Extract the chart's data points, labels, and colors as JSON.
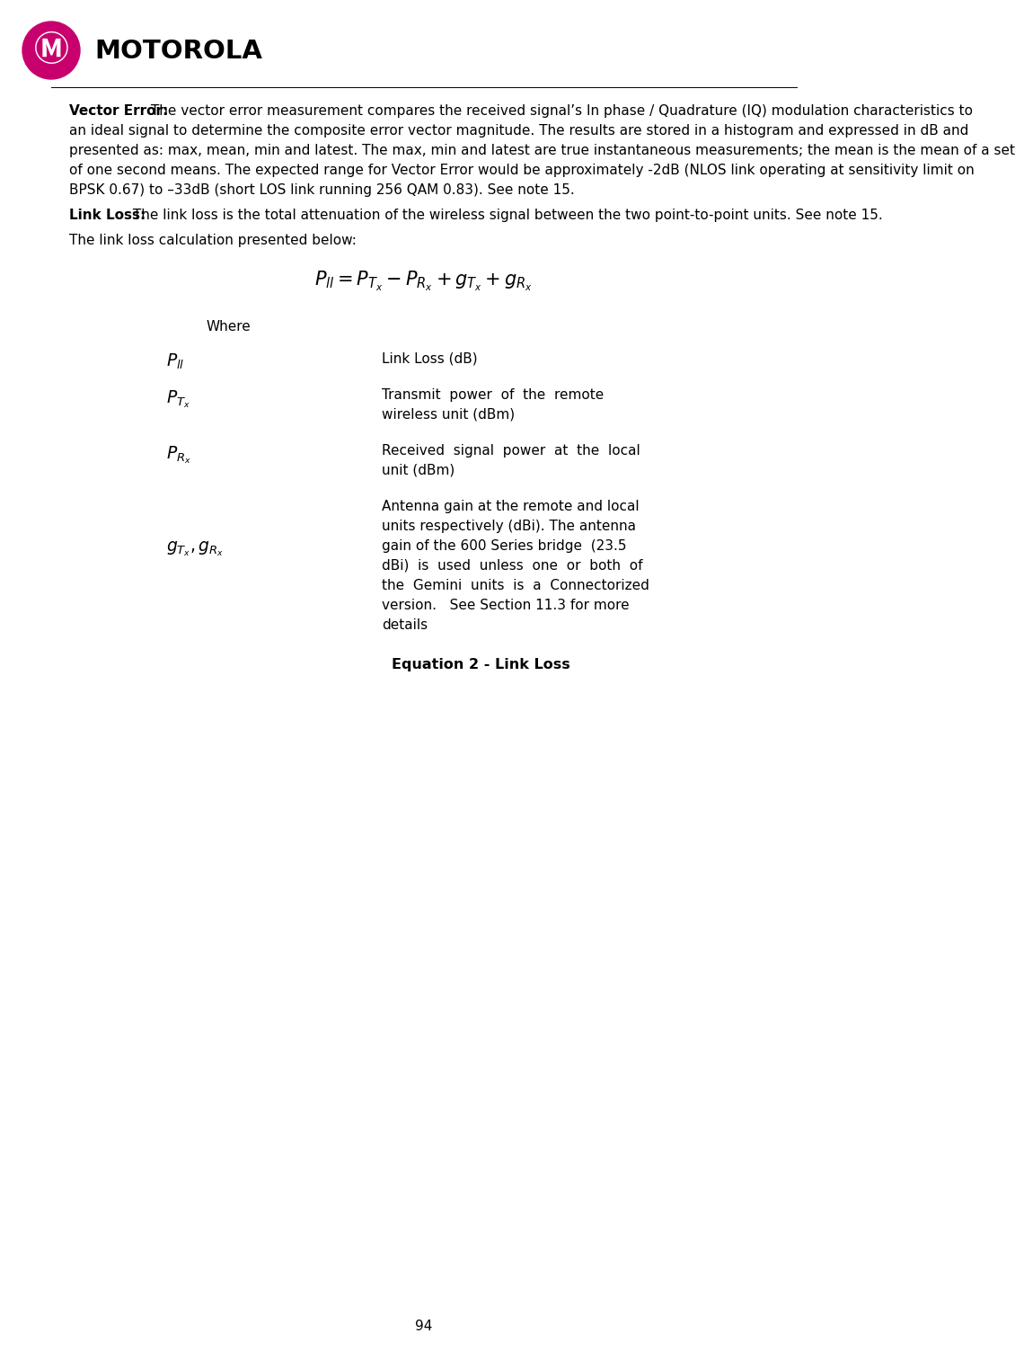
{
  "page_number": "94",
  "background_color": "#ffffff",
  "text_color": "#000000",
  "para1_bold": "Vector Error:",
  "para1_body": " The vector error measurement compares the received signal’s In phase / Quadrature (IQ) modulation characteristics to an ideal signal to determine the composite error vector magnitude. The results are stored in a histogram and expressed in dB and presented as:  max, mean, min and latest. The max, min and latest are true instantaneous measurements; the mean is the mean of a set of one second means. The expected range for Vector Error would be approximately -2dB (NLOS link operating at sensitivity limit on BPSK 0.67) to –33dB (short LOS link running 256 QAM 0.83). See note 15.",
  "para2_bold": "Link Loss:",
  "para2_body": " The link loss is the total attenuation of the wireless signal between the two point-to-point units. See note 15.",
  "para3": "The link loss calculation presented below:",
  "equation_caption": "Equation 2 - Link Loss",
  "where_text": "Where",
  "symbol1_desc": "Link Loss (dB)",
  "symbol2_line1": "Transmit  power  of  the  remote",
  "symbol2_line2": "wireless unit (dBm)",
  "symbol3_line1": "Received  signal  power  at  the  local",
  "symbol3_line2": "unit (dBm)",
  "symbol4_line1": "Antenna gain at the remote and local",
  "symbol4_line2": "units respectively (dBi). The antenna",
  "symbol4_line3": "gain of the 600 Series bridge  (23.5",
  "symbol4_line4": "dBi)  is  used  unless  one  or  both  of",
  "symbol4_line5": "the  Gemini  units  is  a  Connectorized",
  "symbol4_line6": "version.   See Section 11.3 for more",
  "symbol4_line7": "details",
  "logo_color": "#c8006e",
  "motorola_color": "#000000"
}
